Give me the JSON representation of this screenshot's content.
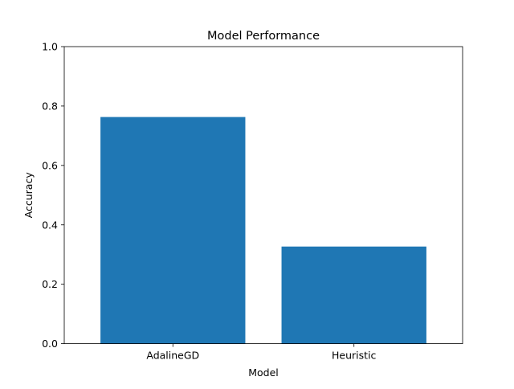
{
  "chart_data": {
    "type": "bar",
    "title": "Model Performance",
    "xlabel": "Model",
    "ylabel": "Accuracy",
    "categories": [
      "AdalineGD",
      "Heuristic"
    ],
    "values": [
      0.763,
      0.327
    ],
    "ylim": [
      0,
      1.0
    ],
    "yticks": [
      0.0,
      0.2,
      0.4,
      0.6,
      0.8,
      1.0
    ],
    "ytick_labels": [
      "0.0",
      "0.2",
      "0.4",
      "0.6",
      "0.8",
      "1.0"
    ],
    "bar_color": "#1f77b4",
    "grid": false,
    "legend": false
  }
}
